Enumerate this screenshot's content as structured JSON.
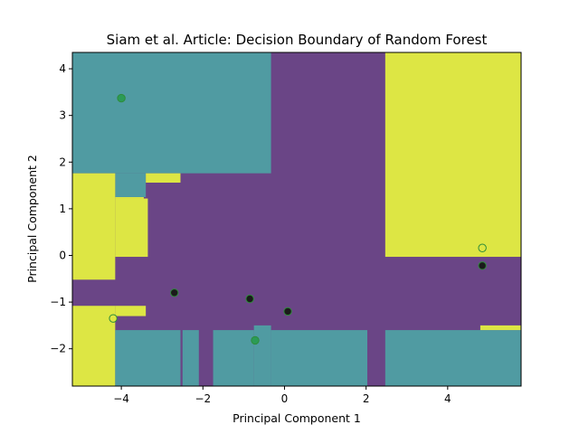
{
  "chart_data": {
    "type": "scatter",
    "title": "Siam et al. Article: Decision Boundary of Random Forest",
    "xlabel": "Principal Component 1",
    "ylabel": "Principal Component 2",
    "xlim": [
      -5.2,
      5.8
    ],
    "ylim": [
      -2.8,
      4.35
    ],
    "xticks": [
      "−4",
      "−2",
      "0",
      "2",
      "4"
    ],
    "xtick_values": [
      -4,
      -2,
      0,
      2,
      4
    ],
    "yticks": [
      "−2",
      "−1",
      "0",
      "1",
      "2",
      "3",
      "4"
    ],
    "ytick_values": [
      -2,
      -1,
      0,
      1,
      2,
      3,
      4
    ],
    "grid": false,
    "colors": {
      "class_0": "#6a4586",
      "class_1": "#509ba2",
      "class_2": "#dde644",
      "point_0": "#1a1a1a",
      "point_1": "#2b9b56",
      "point_2": "#dde644",
      "point_edge": "#2e8c3a"
    },
    "regions": [
      {
        "class": 0,
        "x": [
          -5.2,
          5.8
        ],
        "y": [
          -2.8,
          4.35
        ]
      },
      {
        "class": 1,
        "x": [
          -5.2,
          -0.33
        ],
        "y": [
          1.76,
          4.35
        ]
      },
      {
        "class": 1,
        "x": [
          -4.15,
          -3.4
        ],
        "y": [
          1.25,
          1.76
        ]
      },
      {
        "class": 2,
        "x": [
          -3.4,
          -2.55
        ],
        "y": [
          1.56,
          1.76
        ]
      },
      {
        "class": 2,
        "x": [
          -5.2,
          -4.15
        ],
        "y": [
          -0.52,
          1.76
        ]
      },
      {
        "class": 2,
        "x": [
          -4.15,
          -3.45
        ],
        "y": [
          1.22,
          1.25
        ]
      },
      {
        "class": 2,
        "x": [
          -4.15,
          -3.35
        ],
        "y": [
          -0.03,
          1.22
        ]
      },
      {
        "class": 2,
        "x": [
          2.47,
          5.8
        ],
        "y": [
          -0.03,
          4.35
        ]
      },
      {
        "class": 2,
        "x": [
          -5.2,
          -4.15
        ],
        "y": [
          -2.8,
          -1.08
        ]
      },
      {
        "class": 2,
        "x": [
          -4.15,
          -3.4
        ],
        "y": [
          -1.3,
          -1.08
        ]
      },
      {
        "class": 1,
        "x": [
          -4.15,
          -2.55
        ],
        "y": [
          -2.8,
          -1.6
        ]
      },
      {
        "class": 1,
        "x": [
          -2.5,
          -2.1
        ],
        "y": [
          -2.8,
          -1.6
        ]
      },
      {
        "class": 1,
        "x": [
          -1.75,
          -0.75
        ],
        "y": [
          -2.8,
          -1.6
        ]
      },
      {
        "class": 1,
        "x": [
          -0.75,
          -0.33
        ],
        "y": [
          -2.8,
          -1.5
        ]
      },
      {
        "class": 1,
        "x": [
          -0.33,
          2.03
        ],
        "y": [
          -2.8,
          -1.6
        ]
      },
      {
        "class": 1,
        "x": [
          2.47,
          5.8
        ],
        "y": [
          -2.8,
          -1.6
        ]
      },
      {
        "class": 2,
        "x": [
          4.8,
          5.8
        ],
        "y": [
          -1.6,
          -1.5
        ]
      }
    ],
    "series": [
      {
        "class": 0,
        "x": [
          -2.7,
          -0.85,
          0.08,
          4.85
        ],
        "y": [
          -0.8,
          -0.93,
          -1.2,
          -0.22
        ]
      },
      {
        "class": 1,
        "x": [
          -4.0,
          -0.72
        ],
        "y": [
          3.37,
          -1.82
        ]
      },
      {
        "class": 2,
        "x": [
          -4.2,
          4.85
        ],
        "y": [
          -1.35,
          0.16
        ]
      }
    ]
  }
}
